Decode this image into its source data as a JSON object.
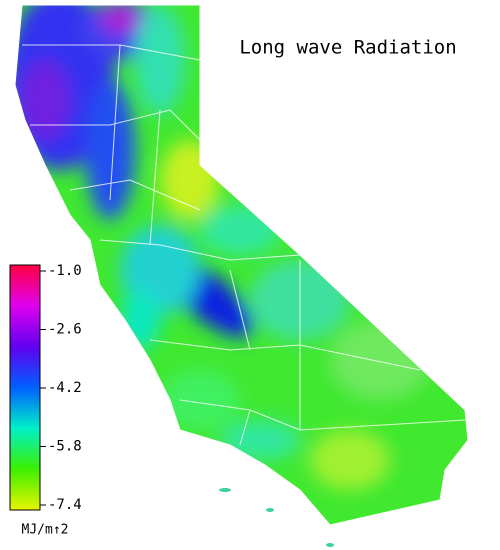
{
  "map": {
    "title": "Long wave Radiation",
    "colorbar": {
      "lim": [
        -7.4,
        -1.0
      ],
      "ticks": [
        {
          "value": -1.0,
          "label": "-1.0"
        },
        -2.6,
        -4.2,
        -5.8,
        -7.4
      ],
      "unit": "MJ/m↑2",
      "colors": [
        "#e8f400",
        "#3cf000",
        "#00f0c8",
        "#0060ff",
        "#6000f0",
        "#e000f0",
        "#ff0040"
      ]
    }
  }
}
